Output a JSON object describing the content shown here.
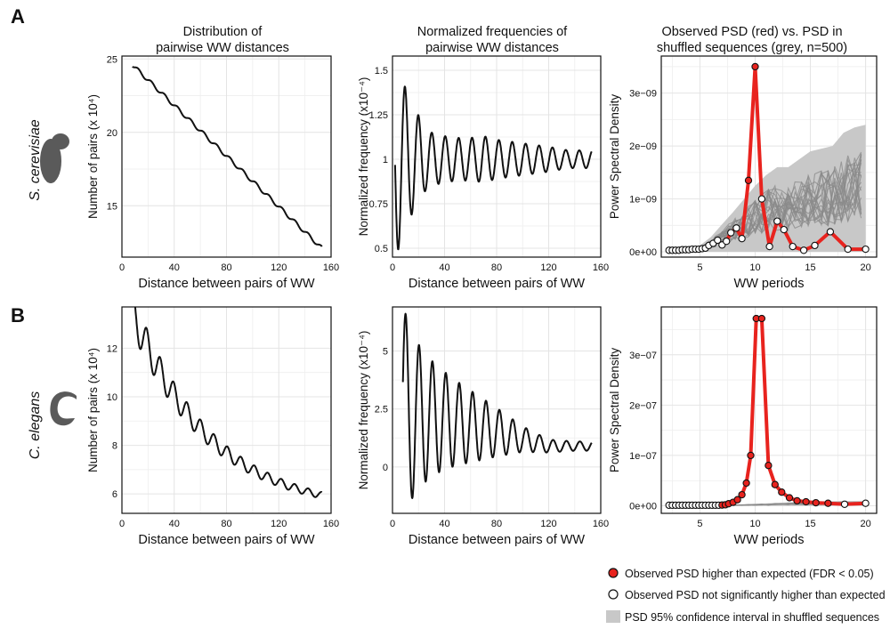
{
  "panel_labels": {
    "a": "A",
    "b": "B"
  },
  "organisms": {
    "a": "S. cerevisiae",
    "b": "C. elegans"
  },
  "column_titles": {
    "col1": [
      "Distribution of",
      "pairwise WW distances"
    ],
    "col2": [
      "Normalized frequencies of",
      "pairwise WW distances"
    ],
    "col3": [
      "Observed PSD (red) vs. PSD in",
      "shuffled sequences (grey, n=500)"
    ]
  },
  "legend": {
    "significant": "Observed PSD higher than expected (FDR < 0.05)",
    "not_significant": "Observed PSD not significantly higher than expected",
    "ci": "PSD 95% confidence interval in shuffled sequences"
  },
  "colors": {
    "observed": "#e8231e",
    "shuffled_band": "#c8c8c8",
    "shuffled_lines": "#8a8a8a",
    "grid": "#e4e4e4",
    "organism_icon": "#5a5a5a"
  },
  "chart_data": [
    {
      "id": "a1",
      "type": "line",
      "xlabel": "Distance between pairs of WW",
      "ylabel": "Number of pairs (x 10⁴)",
      "xlim": [
        0,
        160
      ],
      "ylim": [
        11.5,
        25.2
      ],
      "xticks": [
        0,
        40,
        80,
        120,
        160
      ],
      "yticks": [
        15,
        20,
        25
      ],
      "series": [
        {
          "kind": "trend",
          "x0": 8,
          "x1": 153,
          "y0": 24.6,
          "y1": 12.1,
          "wiggle": 0.13,
          "period": 10
        }
      ]
    },
    {
      "id": "a2",
      "type": "line",
      "xlabel": "Distance between pairs of WW",
      "ylabel": "Normalized frequency (x10⁻⁴)",
      "xlim": [
        0,
        160
      ],
      "ylim": [
        0.45,
        1.58
      ],
      "xticks": [
        0,
        40,
        80,
        120,
        160
      ],
      "yticks": [
        0.5,
        0.75,
        1,
        1.25,
        1.5
      ],
      "yticklabels": [
        "0.5",
        "0.75",
        "1",
        "1.25",
        "1.5"
      ],
      "series": [
        {
          "kind": "osc",
          "x": [
            2,
            6,
            9,
            14,
            19,
            25,
            30,
            40,
            50,
            60,
            70,
            80,
            90,
            100,
            120,
            135,
            150
          ],
          "amp": [
            0.55,
            0.48,
            0.42,
            0.32,
            0.26,
            0.18,
            0.15,
            0.13,
            0.12,
            0.12,
            0.13,
            0.11,
            0.1,
            0.09,
            0.07,
            0.05,
            0.05
          ],
          "base": 1.0,
          "period": 10.3,
          "x0": 2,
          "x1": 153,
          "phase": 3.2
        }
      ]
    },
    {
      "id": "a3",
      "type": "psd",
      "xlabel": "WW periods",
      "ylabel": "Power Spectral Density",
      "xlim": [
        1.5,
        21
      ],
      "ylim": [
        -0.1,
        3.7
      ],
      "xticks": [
        5,
        10,
        15,
        20
      ],
      "yticks": [
        0,
        1,
        2,
        3
      ],
      "yticklabels": [
        "0e+00",
        "1e−09",
        "2e−09",
        "3e−09"
      ],
      "observed": [
        [
          2.2,
          0.03
        ],
        [
          2.5,
          0.03
        ],
        [
          2.8,
          0.03
        ],
        [
          3.1,
          0.03
        ],
        [
          3.4,
          0.04
        ],
        [
          3.7,
          0.04
        ],
        [
          4.0,
          0.04
        ],
        [
          4.3,
          0.05
        ],
        [
          4.6,
          0.05
        ],
        [
          4.9,
          0.05
        ],
        [
          5.2,
          0.06
        ],
        [
          5.5,
          0.07
        ],
        [
          5.8,
          0.12
        ],
        [
          6.2,
          0.16
        ],
        [
          6.6,
          0.22
        ],
        [
          7.0,
          0.13
        ],
        [
          7.4,
          0.2
        ],
        [
          7.8,
          0.36
        ],
        [
          8.3,
          0.45
        ],
        [
          8.8,
          0.25
        ],
        [
          9.4,
          1.35
        ],
        [
          10.0,
          3.5
        ],
        [
          10.6,
          1.0
        ],
        [
          11.3,
          0.1
        ],
        [
          12.0,
          0.58
        ],
        [
          12.6,
          0.42
        ],
        [
          13.4,
          0.1
        ],
        [
          14.4,
          0.03
        ],
        [
          15.4,
          0.12
        ],
        [
          16.8,
          0.38
        ],
        [
          18.4,
          0.05
        ],
        [
          20.0,
          0.05
        ]
      ],
      "significant_idx": [
        20,
        21
      ],
      "band_upper": [
        [
          2.2,
          0.05
        ],
        [
          4.0,
          0.07
        ],
        [
          5.0,
          0.12
        ],
        [
          6.0,
          0.28
        ],
        [
          7.0,
          0.52
        ],
        [
          8.0,
          0.75
        ],
        [
          9.0,
          1.0
        ],
        [
          10.0,
          1.25
        ],
        [
          11.0,
          1.45
        ],
        [
          12.0,
          1.6
        ],
        [
          13.0,
          1.6
        ],
        [
          14.0,
          1.75
        ],
        [
          15.0,
          1.9
        ],
        [
          16.0,
          1.95
        ],
        [
          17.0,
          2.0
        ],
        [
          18.0,
          2.25
        ],
        [
          19.0,
          2.35
        ],
        [
          20.0,
          2.4
        ]
      ]
    },
    {
      "id": "b1",
      "type": "line",
      "xlabel": "Distance between pairs of WW",
      "ylabel": "Number of pairs (x 10⁴)",
      "xlim": [
        0,
        160
      ],
      "ylim": [
        5.2,
        13.7
      ],
      "xticks": [
        0,
        40,
        80,
        120,
        160
      ],
      "yticks": [
        6,
        8,
        10,
        12
      ],
      "series": [
        {
          "kind": "decay",
          "x0": 8,
          "x1": 153,
          "a": 5.2,
          "b": 8.3,
          "tau": 60,
          "wiggle0": 0.75,
          "wtau": 55,
          "period": 10.3
        }
      ]
    },
    {
      "id": "b2",
      "type": "line",
      "xlabel": "Distance between pairs of WW",
      "ylabel": "Normalized frequency (x10⁻⁴)",
      "xlim": [
        0,
        160
      ],
      "ylim": [
        -2.0,
        6.9
      ],
      "xticks": [
        0,
        40,
        80,
        120,
        160
      ],
      "yticks": [
        0,
        2.5,
        5
      ],
      "yticklabels": [
        "0",
        "2.5",
        "5"
      ],
      "series": [
        {
          "kind": "osc",
          "x": [
            8,
            11,
            15,
            20,
            25,
            30,
            40,
            50,
            60,
            70,
            80,
            90,
            100,
            120,
            140,
            153
          ],
          "amp": [
            4.6,
            4.2,
            3.6,
            3.1,
            2.8,
            2.5,
            2.1,
            1.8,
            1.55,
            1.3,
            1.05,
            0.8,
            0.55,
            0.28,
            0.2,
            0.2
          ],
          "base": 2.0,
          "basedecay": [
            [
              8,
              2.3
            ],
            [
              40,
              2.0
            ],
            [
              80,
              1.5
            ],
            [
              120,
              0.9
            ],
            [
              153,
              0.9
            ]
          ],
          "period": 10.3,
          "x0": 8,
          "x1": 153,
          "phase": 0.3
        }
      ]
    },
    {
      "id": "b3",
      "type": "psd",
      "xlabel": "WW periods",
      "ylabel": "Power Spectral Density",
      "xlim": [
        1.5,
        21
      ],
      "ylim": [
        -0.15,
        3.95
      ],
      "xticks": [
        5,
        10,
        15,
        20
      ],
      "yticks": [
        0,
        1,
        2,
        3
      ],
      "yticklabels": [
        "0e+00",
        "1e−07",
        "2e−07",
        "3e−07"
      ],
      "observed": [
        [
          2.2,
          0.01
        ],
        [
          2.5,
          0.01
        ],
        [
          2.8,
          0.01
        ],
        [
          3.1,
          0.01
        ],
        [
          3.4,
          0.01
        ],
        [
          3.7,
          0.01
        ],
        [
          4.0,
          0.01
        ],
        [
          4.3,
          0.01
        ],
        [
          4.6,
          0.01
        ],
        [
          4.9,
          0.01
        ],
        [
          5.2,
          0.01
        ],
        [
          5.5,
          0.01
        ],
        [
          5.8,
          0.01
        ],
        [
          6.1,
          0.01
        ],
        [
          6.4,
          0.01
        ],
        [
          6.7,
          0.01
        ],
        [
          7.0,
          0.015
        ],
        [
          7.3,
          0.02
        ],
        [
          7.6,
          0.04
        ],
        [
          8.0,
          0.07
        ],
        [
          8.4,
          0.12
        ],
        [
          8.8,
          0.22
        ],
        [
          9.2,
          0.45
        ],
        [
          9.6,
          1.0
        ],
        [
          10.1,
          3.72
        ],
        [
          10.6,
          3.72
        ],
        [
          11.2,
          0.8
        ],
        [
          11.8,
          0.42
        ],
        [
          12.4,
          0.27
        ],
        [
          13.1,
          0.16
        ],
        [
          13.8,
          0.1
        ],
        [
          14.6,
          0.08
        ],
        [
          15.5,
          0.06
        ],
        [
          16.6,
          0.05
        ],
        [
          18.1,
          0.03
        ],
        [
          20.0,
          0.05
        ]
      ],
      "significant_idx": [
        16,
        17,
        18,
        19,
        20,
        21,
        22,
        23,
        24,
        25,
        26,
        27,
        28,
        29,
        30,
        31,
        32,
        33
      ],
      "band_upper": [
        [
          2.2,
          0.01
        ],
        [
          5.0,
          0.015
        ],
        [
          8.0,
          0.02
        ],
        [
          10.0,
          0.04
        ],
        [
          13.0,
          0.07
        ],
        [
          16.0,
          0.09
        ],
        [
          20.0,
          0.1
        ]
      ]
    }
  ]
}
